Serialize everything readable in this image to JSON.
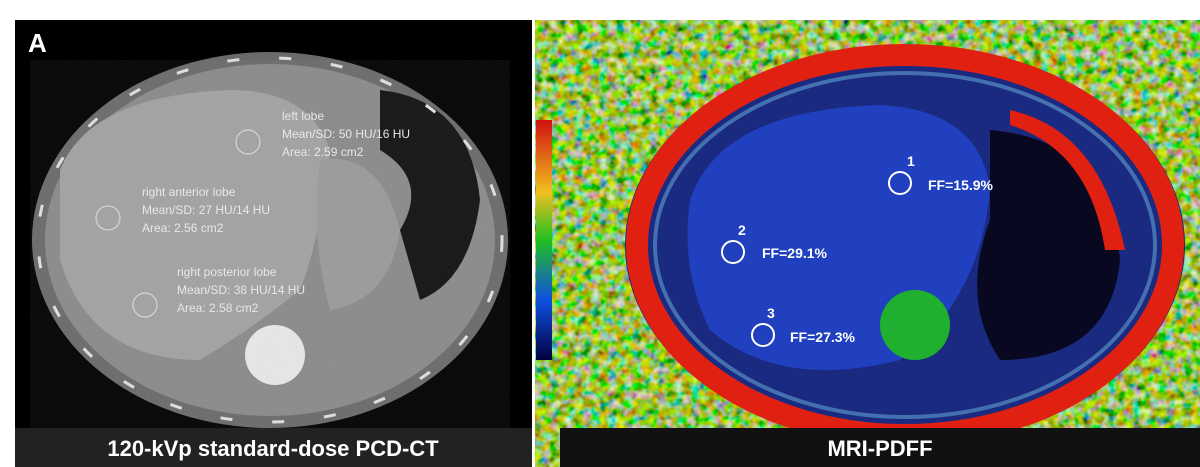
{
  "panel_a": {
    "label": "A",
    "rois": [
      {
        "name": "left lobe",
        "stats": "Mean/SD: 50 HU/16 HU",
        "area": "Area: 2.59 cm2"
      },
      {
        "name": "right anterior lobe",
        "stats": "Mean/SD: 27 HU/14 HU",
        "area": "Area: 2.56 cm2"
      },
      {
        "name": "right posterior lobe",
        "stats": "Mean/SD: 38 HU/14 HU",
        "area": "Area: 2.58 cm2"
      }
    ],
    "caption": "120-kVp standard-dose PCD-CT"
  },
  "panel_b": {
    "rois": [
      {
        "number": "1",
        "value": "FF=15.9%"
      },
      {
        "number": "2",
        "value": "FF=29.1%"
      },
      {
        "number": "3",
        "value": "FF=27.3%"
      }
    ],
    "caption": "MRI-PDFF"
  }
}
